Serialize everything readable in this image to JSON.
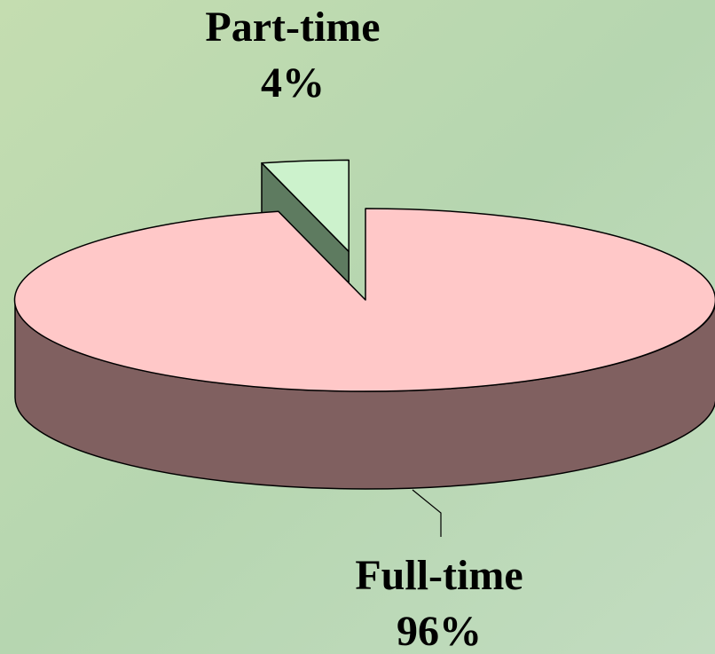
{
  "chart_data": {
    "type": "pie3d",
    "categories": [
      "Part-time",
      "Full-time"
    ],
    "values": [
      4,
      96
    ],
    "value_labels": [
      "4%",
      "96%"
    ],
    "colors": [
      "#ccf2cc",
      "#ffc8c8"
    ],
    "side_colors": [
      "#5e7b60",
      "#806060"
    ]
  }
}
